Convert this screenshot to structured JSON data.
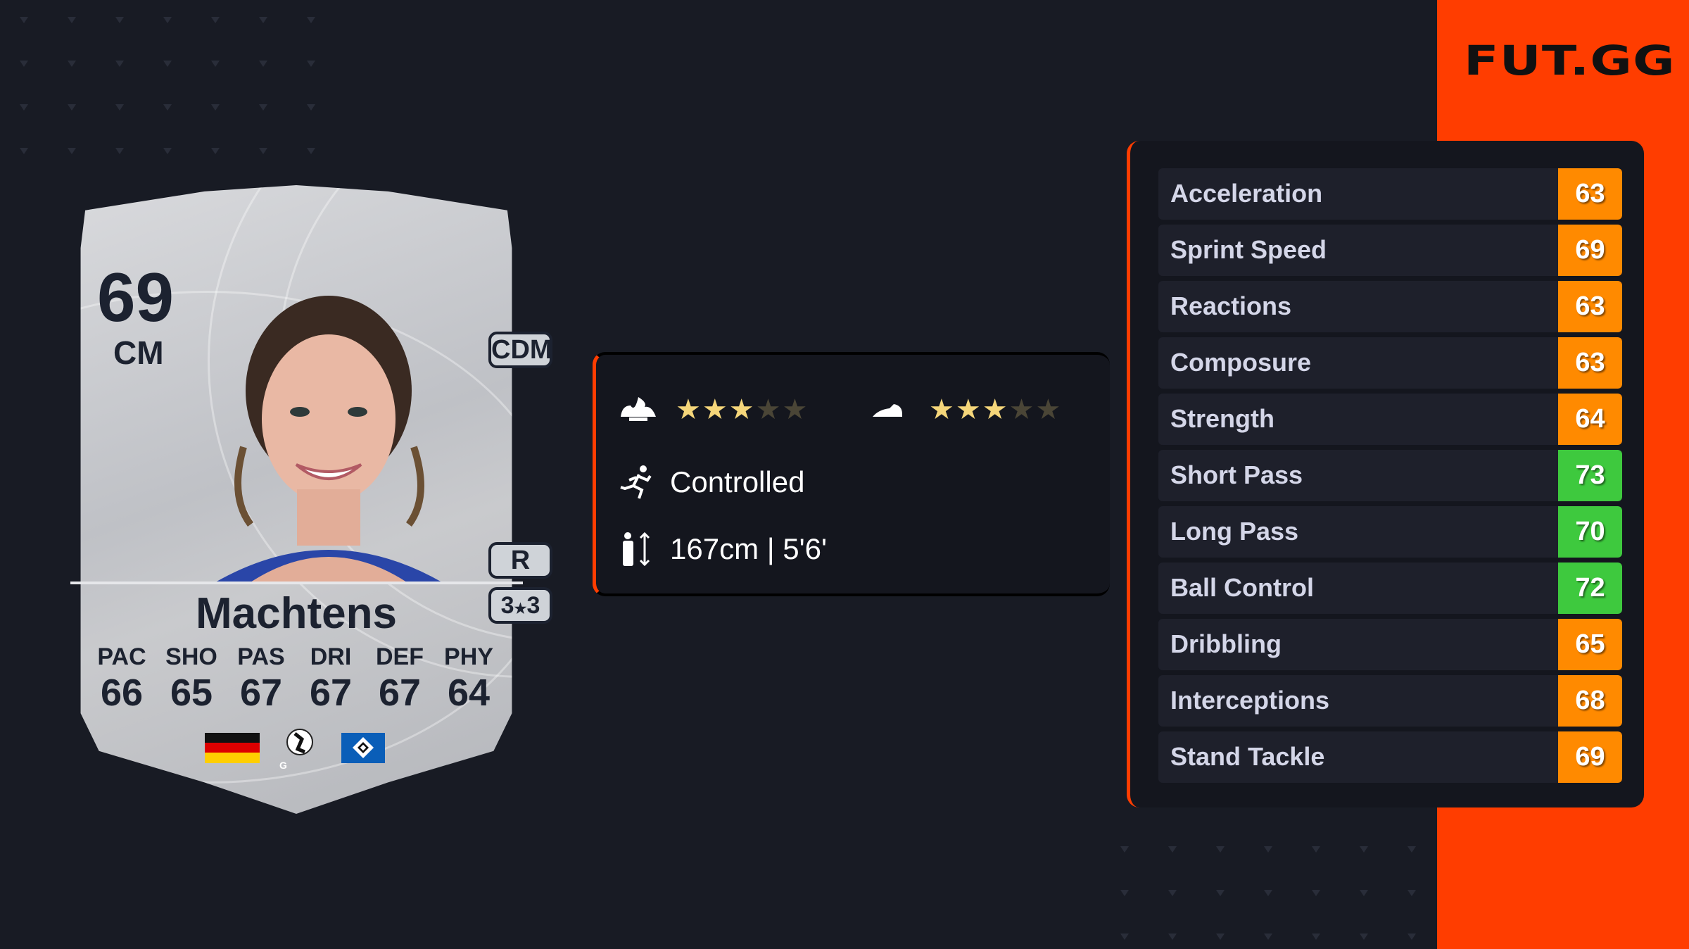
{
  "brand": {
    "logo": "FUT.GG",
    "accent": "#ff3d00"
  },
  "card": {
    "rating": "69",
    "position": "CM",
    "alt_position": "CDM",
    "preferred_foot": "R",
    "skill_weak": {
      "skill": "3",
      "weak": "3",
      "separator": "★"
    },
    "name": "Machtens",
    "stats": [
      {
        "label": "PAC",
        "value": "66"
      },
      {
        "label": "SHO",
        "value": "65"
      },
      {
        "label": "PAS",
        "value": "67"
      },
      {
        "label": "DRI",
        "value": "67"
      },
      {
        "label": "DEF",
        "value": "67"
      },
      {
        "label": "PHY",
        "value": "64"
      }
    ],
    "nation_icon": "germany-flag",
    "league_icon": "google-pixel-frauen-bundesliga-logo",
    "club_icon": "hsv-logo"
  },
  "info": {
    "skill_moves": {
      "icon": "jester-hat-icon",
      "stars": 3,
      "max": 5
    },
    "weak_foot": {
      "icon": "boot-icon",
      "stars": 3,
      "max": 5
    },
    "accelerate": {
      "icon": "running-icon",
      "label": "Controlled"
    },
    "height": {
      "icon": "height-icon",
      "label": "167cm | 5'6'"
    }
  },
  "attributes": [
    {
      "label": "Acceleration",
      "value": "63"
    },
    {
      "label": "Sprint Speed",
      "value": "69"
    },
    {
      "label": "Reactions",
      "value": "63"
    },
    {
      "label": "Composure",
      "value": "63"
    },
    {
      "label": "Strength",
      "value": "64"
    },
    {
      "label": "Short Pass",
      "value": "73"
    },
    {
      "label": "Long Pass",
      "value": "70"
    },
    {
      "label": "Ball Control",
      "value": "72"
    },
    {
      "label": "Dribbling",
      "value": "65"
    },
    {
      "label": "Interceptions",
      "value": "68"
    },
    {
      "label": "Stand Tackle",
      "value": "69"
    }
  ],
  "colors": {
    "high": "#3ec93e",
    "mid": "#ff8a00",
    "star_on": "#f5d67a",
    "star_off": "#4a4536"
  }
}
